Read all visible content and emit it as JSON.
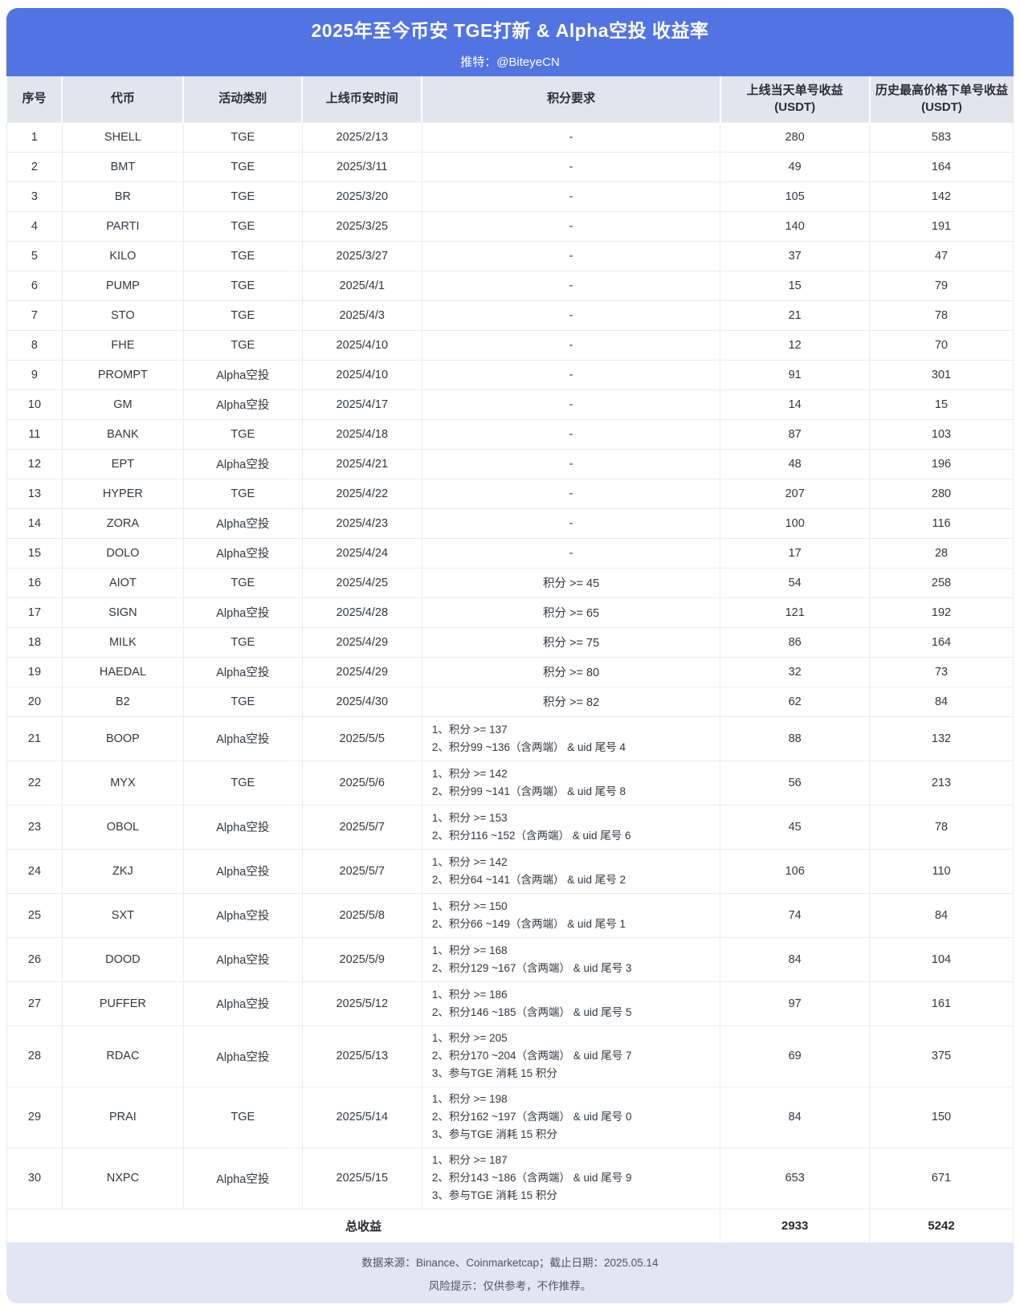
{
  "header": {
    "title": "2025年至今币安 TGE打新 & Alpha空投 收益率",
    "subtitle": "推特：@BiteyeCN"
  },
  "chart_data": {
    "type": "table",
    "title": "2025年至今币安 TGE打新 & Alpha空投 收益率",
    "columns": [
      {
        "label": "序号",
        "sub": ""
      },
      {
        "label": "代币",
        "sub": ""
      },
      {
        "label": "活动类别",
        "sub": ""
      },
      {
        "label": "上线币安时间",
        "sub": ""
      },
      {
        "label": "积分要求",
        "sub": ""
      },
      {
        "label": "上线当天单号收益",
        "sub": "(USDT)"
      },
      {
        "label": "历史最高价格下单号收益",
        "sub": "(USDT)"
      }
    ],
    "rows": [
      {
        "no": "1",
        "token": "SHELL",
        "type": "TGE",
        "date": "2025/2/13",
        "criteria": [
          "-"
        ],
        "day1": "280",
        "ath": "583"
      },
      {
        "no": "2",
        "token": "BMT",
        "type": "TGE",
        "date": "2025/3/11",
        "criteria": [
          "-"
        ],
        "day1": "49",
        "ath": "164"
      },
      {
        "no": "3",
        "token": "BR",
        "type": "TGE",
        "date": "2025/3/20",
        "criteria": [
          "-"
        ],
        "day1": "105",
        "ath": "142"
      },
      {
        "no": "4",
        "token": "PARTI",
        "type": "TGE",
        "date": "2025/3/25",
        "criteria": [
          "-"
        ],
        "day1": "140",
        "ath": "191"
      },
      {
        "no": "5",
        "token": "KILO",
        "type": "TGE",
        "date": "2025/3/27",
        "criteria": [
          "-"
        ],
        "day1": "37",
        "ath": "47"
      },
      {
        "no": "6",
        "token": "PUMP",
        "type": "TGE",
        "date": "2025/4/1",
        "criteria": [
          "-"
        ],
        "day1": "15",
        "ath": "79"
      },
      {
        "no": "7",
        "token": "STO",
        "type": "TGE",
        "date": "2025/4/3",
        "criteria": [
          "-"
        ],
        "day1": "21",
        "ath": "78"
      },
      {
        "no": "8",
        "token": "FHE",
        "type": "TGE",
        "date": "2025/4/10",
        "criteria": [
          "-"
        ],
        "day1": "12",
        "ath": "70"
      },
      {
        "no": "9",
        "token": "PROMPT",
        "type": "Alpha空投",
        "date": "2025/4/10",
        "criteria": [
          "-"
        ],
        "day1": "91",
        "ath": "301"
      },
      {
        "no": "10",
        "token": "GM",
        "type": "Alpha空投",
        "date": "2025/4/17",
        "criteria": [
          "-"
        ],
        "day1": "14",
        "ath": "15"
      },
      {
        "no": "11",
        "token": "BANK",
        "type": "TGE",
        "date": "2025/4/18",
        "criteria": [
          "-"
        ],
        "day1": "87",
        "ath": "103"
      },
      {
        "no": "12",
        "token": "EPT",
        "type": "Alpha空投",
        "date": "2025/4/21",
        "criteria": [
          "-"
        ],
        "day1": "48",
        "ath": "196"
      },
      {
        "no": "13",
        "token": "HYPER",
        "type": "TGE",
        "date": "2025/4/22",
        "criteria": [
          "-"
        ],
        "day1": "207",
        "ath": "280"
      },
      {
        "no": "14",
        "token": "ZORA",
        "type": "Alpha空投",
        "date": "2025/4/23",
        "criteria": [
          "-"
        ],
        "day1": "100",
        "ath": "116"
      },
      {
        "no": "15",
        "token": "DOLO",
        "type": "Alpha空投",
        "date": "2025/4/24",
        "criteria": [
          "-"
        ],
        "day1": "17",
        "ath": "28"
      },
      {
        "no": "16",
        "token": "AIOT",
        "type": "TGE",
        "date": "2025/4/25",
        "criteria": [
          "积分 >= 45"
        ],
        "day1": "54",
        "ath": "258"
      },
      {
        "no": "17",
        "token": "SIGN",
        "type": "Alpha空投",
        "date": "2025/4/28",
        "criteria": [
          "积分 >= 65"
        ],
        "day1": "121",
        "ath": "192"
      },
      {
        "no": "18",
        "token": "MILK",
        "type": "TGE",
        "date": "2025/4/29",
        "criteria": [
          "积分 >= 75"
        ],
        "day1": "86",
        "ath": "164"
      },
      {
        "no": "19",
        "token": "HAEDAL",
        "type": "Alpha空投",
        "date": "2025/4/29",
        "criteria": [
          "积分 >= 80"
        ],
        "day1": "32",
        "ath": "73"
      },
      {
        "no": "20",
        "token": "B2",
        "type": "TGE",
        "date": "2025/4/30",
        "criteria": [
          "积分 >= 82"
        ],
        "day1": "62",
        "ath": "84"
      },
      {
        "no": "21",
        "token": "BOOP",
        "type": "Alpha空投",
        "date": "2025/5/5",
        "criteria": [
          "1、积分 >= 137",
          "2、积分99 ~136（含两端） & uid 尾号 4"
        ],
        "day1": "88",
        "ath": "132"
      },
      {
        "no": "22",
        "token": "MYX",
        "type": "TGE",
        "date": "2025/5/6",
        "criteria": [
          "1、积分 >= 142",
          "2、积分99 ~141（含两端） & uid 尾号 8"
        ],
        "day1": "56",
        "ath": "213"
      },
      {
        "no": "23",
        "token": "OBOL",
        "type": "Alpha空投",
        "date": "2025/5/7",
        "criteria": [
          "1、积分 >= 153",
          "2、积分116 ~152（含两端） & uid 尾号 6"
        ],
        "day1": "45",
        "ath": "78"
      },
      {
        "no": "24",
        "token": "ZKJ",
        "type": "Alpha空投",
        "date": "2025/5/7",
        "criteria": [
          "1、积分 >= 142",
          "2、积分64 ~141（含两端） & uid 尾号 2"
        ],
        "day1": "106",
        "ath": "110"
      },
      {
        "no": "25",
        "token": "SXT",
        "type": "Alpha空投",
        "date": "2025/5/8",
        "criteria": [
          "1、积分 >= 150",
          "2、积分66 ~149（含两端） & uid 尾号 1"
        ],
        "day1": "74",
        "ath": "84"
      },
      {
        "no": "26",
        "token": "DOOD",
        "type": "Alpha空投",
        "date": "2025/5/9",
        "criteria": [
          "1、积分 >= 168",
          "2、积分129 ~167（含两端） & uid 尾号 3"
        ],
        "day1": "84",
        "ath": "104"
      },
      {
        "no": "27",
        "token": "PUFFER",
        "type": "Alpha空投",
        "date": "2025/5/12",
        "criteria": [
          "1、积分 >= 186",
          "2、积分146 ~185（含两端） & uid 尾号 5"
        ],
        "day1": "97",
        "ath": "161"
      },
      {
        "no": "28",
        "token": "RDAC",
        "type": "Alpha空投",
        "date": "2025/5/13",
        "criteria": [
          "1、积分 >= 205",
          "2、积分170 ~204（含两端） & uid 尾号 7",
          "3、参与TGE 消耗 15 积分"
        ],
        "day1": "69",
        "ath": "375"
      },
      {
        "no": "29",
        "token": "PRAI",
        "type": "TGE",
        "date": "2025/5/14",
        "criteria": [
          "1、积分 >= 198",
          "2、积分162 ~197（含两端） & uid 尾号 0",
          "3、参与TGE 消耗 15 积分"
        ],
        "day1": "84",
        "ath": "150"
      },
      {
        "no": "30",
        "token": "NXPC",
        "type": "Alpha空投",
        "date": "2025/5/15",
        "criteria": [
          "1、积分 >= 187",
          "2、积分143 ~186（含两端） & uid 尾号 9",
          "3、参与TGE 消耗 15 积分"
        ],
        "day1": "653",
        "ath": "671"
      }
    ],
    "total": {
      "label": "总收益",
      "day1": "2933",
      "ath": "5242"
    }
  },
  "footer": {
    "source": "数据来源：Binance、Coinmarketcap；截止日期：2025.05.14",
    "risk": "风险提示：仅供参考，不作推荐。"
  },
  "colors": {
    "accent": "#5274e3",
    "header_row_bg": "#e3e5ee",
    "footer_bg": "#e2e6f2",
    "border": "#e9ebf3",
    "text": "#333740"
  }
}
